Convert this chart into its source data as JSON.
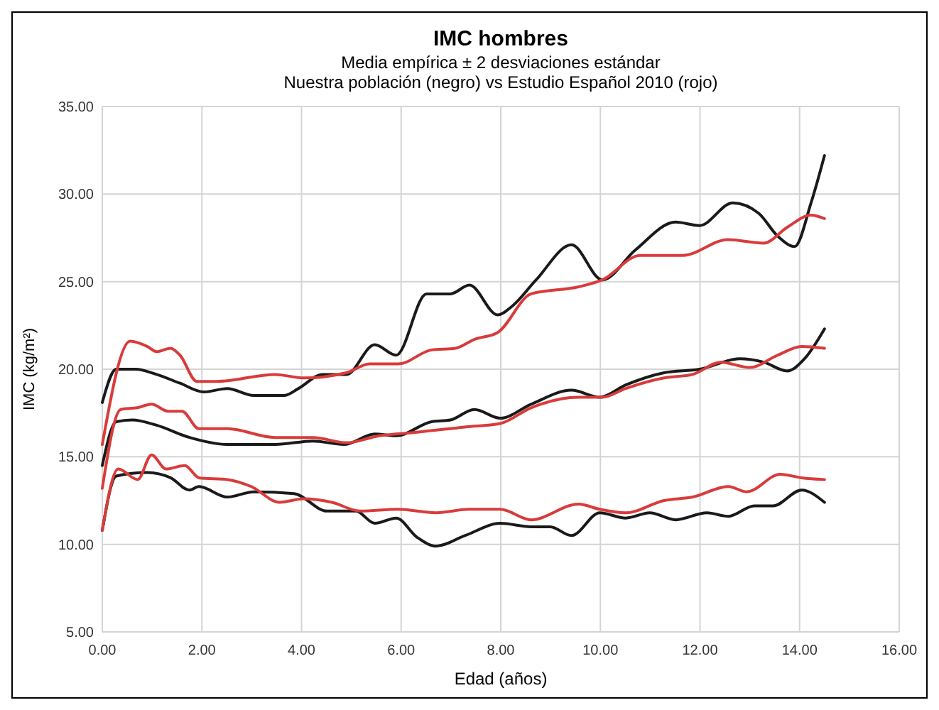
{
  "chart_data": {
    "type": "line",
    "title": "IMC hombres",
    "subtitle": "Media empírica ± 2 desviaciones estándar\nNuestra población (negro) vs Estudio Español 2010 (rojo)",
    "xlabel": "Edad (años)",
    "ylabel": "IMC (kg/m²)",
    "xlim": [
      0,
      16
    ],
    "xticks": [
      {
        "value": 0,
        "label": "0.00"
      },
      {
        "value": 2,
        "label": "2.00"
      },
      {
        "value": 4,
        "label": "4.00"
      },
      {
        "value": 6,
        "label": "6.00"
      },
      {
        "value": 8,
        "label": "8.00"
      },
      {
        "value": 10,
        "label": "10.00"
      },
      {
        "value": 12,
        "label": "12.00"
      },
      {
        "value": 14,
        "label": "14.00"
      },
      {
        "value": 16,
        "label": "16.00"
      }
    ],
    "ylim": [
      5,
      35
    ],
    "yticks": [
      {
        "value": 5,
        "label": "5.00"
      },
      {
        "value": 10,
        "label": "10.00"
      },
      {
        "value": 15,
        "label": "15.00"
      },
      {
        "value": 20,
        "label": "20.00"
      },
      {
        "value": 25,
        "label": "25.00"
      },
      {
        "value": 30,
        "label": "30.00"
      },
      {
        "value": 35,
        "label": "35.00"
      }
    ],
    "grid": true,
    "marker": "none",
    "line_style": "solid",
    "series": [
      {
        "color": "#1a1a1a",
        "x": [
          0,
          0.28,
          0.67,
          1.09,
          1.56,
          2.04,
          2.51,
          3.04,
          3.66,
          3.94,
          4.42,
          4.9,
          5.47,
          5.9,
          6.51,
          6.99,
          7.37,
          7.94,
          8.23,
          8.71,
          9.42,
          10.04,
          10.7,
          11.51,
          11.99,
          12.66,
          13.18,
          13.56,
          13.9,
          14.23,
          14.5
        ],
        "values": [
          18.1,
          20,
          20,
          19.7,
          19.2,
          18.7,
          18.9,
          18.5,
          18.5,
          18.9,
          19.7,
          19.7,
          21.4,
          20.8,
          24.3,
          24.3,
          24.8,
          23.1,
          23.6,
          25.1,
          27.1,
          25.1,
          26.8,
          28.4,
          28.2,
          29.5,
          28.9,
          27.6,
          27,
          29.5,
          32.2
        ]
      },
      {
        "color": "#d93b3b",
        "x": [
          0,
          0.56,
          0.9,
          1.09,
          1.37,
          1.56,
          1.9,
          2.3,
          3.47,
          4.04,
          4.9,
          5.37,
          5.94,
          6.61,
          7.09,
          7.47,
          7.94,
          8.61,
          9.56,
          10.04,
          10.8,
          11.66,
          12.56,
          13.28,
          13.75,
          14.23,
          14.5
        ],
        "values": [
          15.7,
          21.6,
          21.3,
          21,
          21.2,
          20.8,
          19.3,
          19.3,
          19.7,
          19.5,
          19.8,
          20.3,
          20.3,
          21.1,
          21.2,
          21.7,
          22.1,
          24.3,
          24.7,
          25.1,
          26.5,
          26.5,
          27.4,
          27.2,
          28.1,
          28.8,
          28.6
        ]
      },
      {
        "color": "#1a1a1a",
        "x": [
          0,
          0.28,
          0.6,
          1.09,
          1.75,
          2.51,
          3.47,
          4.23,
          4.85,
          5.47,
          5.9,
          6.61,
          6.99,
          7.47,
          7.99,
          8.61,
          9.42,
          9.99,
          10.51,
          11.28,
          11.99,
          12.8,
          13.28,
          13.75,
          14.1,
          14.5
        ],
        "values": [
          14.5,
          17,
          17.1,
          16.8,
          16.1,
          15.7,
          15.7,
          15.9,
          15.7,
          16.3,
          16.2,
          17,
          17.1,
          17.7,
          17.2,
          18,
          18.8,
          18.4,
          19.1,
          19.8,
          20,
          20.6,
          20.4,
          19.9,
          20.6,
          22.3
        ]
      },
      {
        "color": "#d93b3b",
        "x": [
          0,
          0.37,
          0.7,
          0.99,
          1.32,
          1.6,
          1.94,
          2.51,
          3.47,
          4.23,
          4.9,
          5.56,
          6.32,
          7.28,
          7.99,
          8.61,
          9.56,
          10.04,
          10.51,
          11.28,
          11.85,
          12.42,
          13,
          13.56,
          14.04,
          14.5
        ],
        "values": [
          13.2,
          17.7,
          17.8,
          18,
          17.6,
          17.6,
          16.6,
          16.6,
          16.1,
          16.1,
          15.8,
          16.2,
          16.4,
          16.7,
          16.9,
          17.8,
          18.4,
          18.4,
          18.9,
          19.5,
          19.7,
          20.4,
          20.1,
          20.8,
          21.3,
          21.2
        ]
      },
      {
        "color": "#1a1a1a",
        "x": [
          0,
          0.28,
          0.9,
          1.37,
          1.75,
          1.94,
          2.51,
          3.04,
          3.85,
          4.51,
          5.09,
          5.47,
          5.9,
          6.32,
          6.7,
          7.28,
          7.99,
          8.61,
          8.99,
          9.42,
          9.99,
          10.51,
          10.99,
          11.51,
          12.14,
          12.57,
          13.09,
          13.47,
          14.04,
          14.5
        ],
        "values": [
          10.8,
          13.9,
          14.1,
          13.8,
          13.1,
          13.3,
          12.7,
          13,
          12.9,
          11.9,
          11.9,
          11.2,
          11.5,
          10.4,
          9.9,
          10.5,
          11.2,
          11,
          11,
          10.5,
          11.8,
          11.5,
          11.8,
          11.4,
          11.8,
          11.6,
          12.2,
          12.2,
          13.1,
          12.4
        ]
      },
      {
        "color": "#d93b3b",
        "x": [
          0,
          0.32,
          0.71,
          0.99,
          1.28,
          1.66,
          1.94,
          2.51,
          2.99,
          3.56,
          4.04,
          4.61,
          5.18,
          5.94,
          6.7,
          7.37,
          7.99,
          8.61,
          9.56,
          9.99,
          10.51,
          11.28,
          11.85,
          12.57,
          12.94,
          13.61,
          14.04,
          14.5
        ],
        "values": [
          10.8,
          14.3,
          13.7,
          15.1,
          14.3,
          14.5,
          13.8,
          13.7,
          13.3,
          12.4,
          12.6,
          12.4,
          11.9,
          12,
          11.8,
          12,
          12,
          11.4,
          12.3,
          12,
          11.8,
          12.5,
          12.7,
          13.3,
          13,
          14,
          13.8,
          13.7
        ]
      }
    ]
  }
}
